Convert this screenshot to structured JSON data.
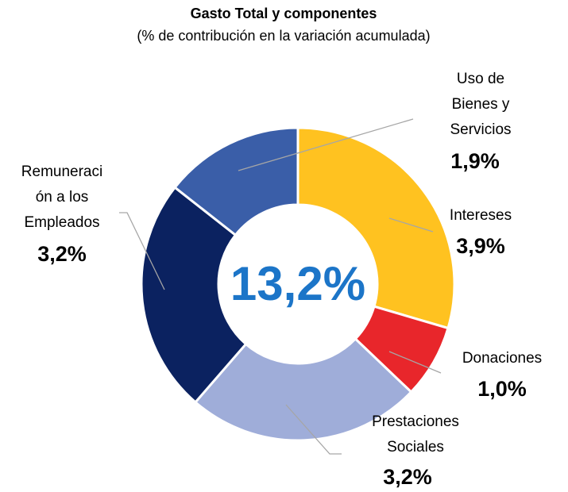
{
  "chart_data": {
    "type": "donut",
    "title": "Gasto Total y componentes",
    "subtitle": "(% de contribución en la variación acumulada)",
    "center_label": "13,2%",
    "categories": [
      [
        "Intereses"
      ],
      [
        "Donaciones"
      ],
      [
        "Prestaciones",
        "Sociales"
      ],
      [
        "Remuneraci",
        "ón a los",
        "Empleados"
      ],
      [
        "Uso de",
        "Bienes y",
        "Servicios"
      ]
    ],
    "values": [
      3.9,
      1.0,
      3.2,
      3.2,
      1.9
    ],
    "value_labels": [
      "3,9%",
      "1,0%",
      "3,2%",
      "3,2%",
      "1,9%"
    ],
    "colors": [
      "#FFC220",
      "#E8262B",
      "#9FADD9",
      "#0B2260",
      "#3A5EA8"
    ]
  }
}
